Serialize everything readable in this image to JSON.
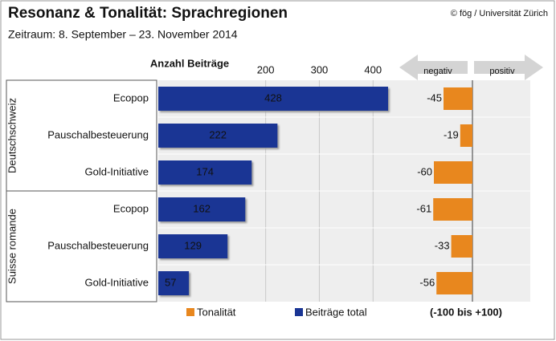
{
  "chart_data": {
    "type": "bar",
    "orientation": "horizontal",
    "title": "Resonanz & Tonalität: Sprachregionen",
    "subtitle": "Zeitraum: 8. September – 23. November 2014",
    "source": "© fög / Universität Zürich",
    "x_label": "Anzahl Beiträge",
    "negative_label": "negativ",
    "positive_label": "positiv",
    "range_note": "(-100 bis +100)",
    "groups": [
      {
        "label": "Deutschschweiz",
        "categories": [
          "Ecopop",
          "Pauschalbesteuerung",
          "Gold-Initiative"
        ]
      },
      {
        "label": "Suisse romande",
        "categories": [
          "Ecopop",
          "Pauschalbesteuerung",
          "Gold-Initiative"
        ]
      }
    ],
    "series": [
      {
        "name": "Beiträge total",
        "color": "#1a3594",
        "values": [
          428,
          222,
          174,
          162,
          129,
          57
        ],
        "xlim": [
          0,
          440
        ],
        "xticks": [
          200,
          300,
          400
        ]
      },
      {
        "name": "Tonalität",
        "color": "#e8871e",
        "values": [
          -45,
          -19,
          -60,
          -61,
          -33,
          -56
        ],
        "xlim": [
          -100,
          100
        ]
      }
    ],
    "grid": true
  }
}
